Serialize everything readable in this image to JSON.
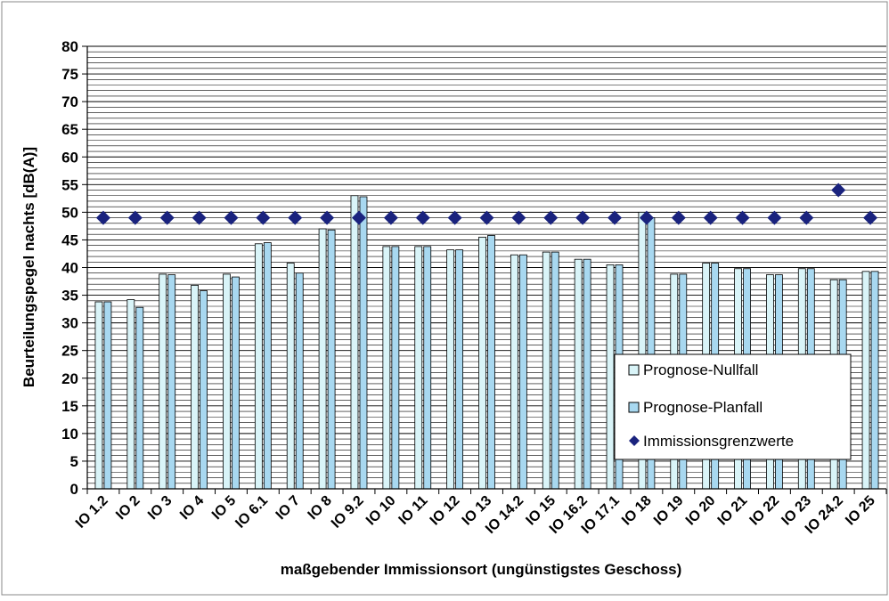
{
  "chart_data": {
    "type": "bar",
    "ylabel": "Beurteilungspegel nachts [dB(A)]",
    "xlabel": "maßgebender Immissionsort (ungünstigstes Geschoss)",
    "ylim": [
      0,
      80
    ],
    "yticks": [
      0,
      5,
      10,
      15,
      20,
      25,
      30,
      35,
      40,
      45,
      50,
      55,
      60,
      65,
      70,
      75,
      80
    ],
    "grid": true,
    "legend_position": "lower-right",
    "categories": [
      "IO 1.2",
      "IO 2",
      "IO 3",
      "IO 4",
      "IO 5",
      "IO 6.1",
      "IO 7",
      "IO 8",
      "IO 9.2",
      "IO 10",
      "IO 11",
      "IO 12",
      "IO 13",
      "IO 14.2",
      "IO 15",
      "IO 16.2",
      "IO 17.1",
      "IO 18",
      "IO 19",
      "IO 20",
      "IO 21",
      "IO 22",
      "IO 23",
      "IO 24.2",
      "IO 25"
    ],
    "series": [
      {
        "name": "Prognose-Nullfall",
        "kind": "bar",
        "color": "#d9f4f8",
        "values": [
          33.8,
          34.2,
          38.8,
          36.8,
          38.8,
          44.3,
          40.8,
          47.0,
          53.0,
          43.8,
          43.8,
          43.2,
          45.5,
          42.3,
          42.8,
          41.5,
          40.5,
          50.0,
          38.8,
          40.8,
          39.8,
          38.7,
          39.8,
          37.8,
          39.3
        ]
      },
      {
        "name": "Prognose-Planfall",
        "kind": "bar",
        "color": "#a8d8f0",
        "values": [
          33.8,
          32.8,
          38.7,
          35.8,
          38.3,
          44.5,
          39.0,
          46.8,
          52.8,
          43.8,
          43.8,
          43.2,
          45.8,
          42.3,
          42.8,
          41.5,
          40.5,
          49.0,
          38.8,
          40.8,
          39.8,
          38.7,
          39.8,
          37.8,
          39.3
        ]
      },
      {
        "name": "Immissionsgrenzwerte",
        "kind": "marker",
        "color": "#1a237e",
        "values": [
          49,
          49,
          49,
          49,
          49,
          49,
          49,
          49,
          49,
          49,
          49,
          49,
          49,
          49,
          49,
          49,
          49,
          49,
          49,
          49,
          49,
          49,
          49,
          54,
          49
        ]
      }
    ]
  }
}
